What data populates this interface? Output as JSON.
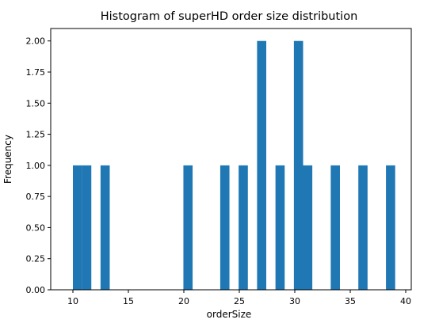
{
  "chart_data": {
    "type": "bar",
    "title": "Histogram of superHD order size distribution",
    "xlabel": "orderSize",
    "ylabel": "Frequency",
    "xlim": [
      8,
      40.5
    ],
    "ylim": [
      0,
      2.1
    ],
    "xticks": [
      10,
      15,
      20,
      25,
      30,
      35,
      40
    ],
    "yticks": [
      "0.00",
      "0.25",
      "0.50",
      "0.75",
      "1.00",
      "1.25",
      "1.50",
      "1.75",
      "2.00"
    ],
    "bar_color": "#1f77b4",
    "bin_width": 0.83,
    "bins": [
      {
        "start": 10.0,
        "count": 1
      },
      {
        "start": 10.83,
        "count": 1
      },
      {
        "start": 12.49,
        "count": 1
      },
      {
        "start": 19.96,
        "count": 1
      },
      {
        "start": 23.28,
        "count": 1
      },
      {
        "start": 24.94,
        "count": 1
      },
      {
        "start": 26.6,
        "count": 2
      },
      {
        "start": 28.26,
        "count": 1
      },
      {
        "start": 29.92,
        "count": 2
      },
      {
        "start": 30.75,
        "count": 1
      },
      {
        "start": 33.24,
        "count": 1
      },
      {
        "start": 35.73,
        "count": 1
      },
      {
        "start": 38.22,
        "count": 1
      }
    ]
  }
}
